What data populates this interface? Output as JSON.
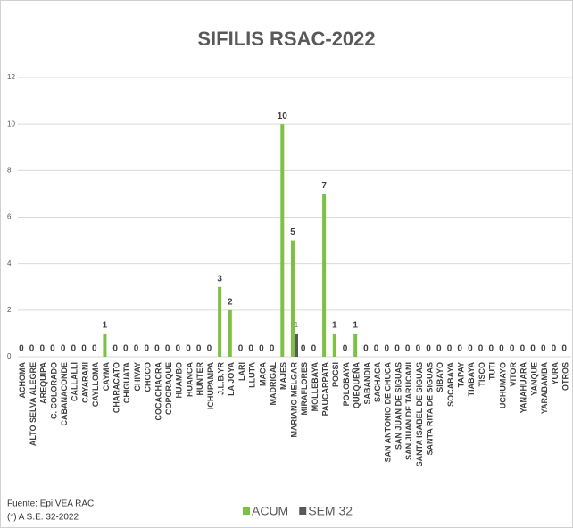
{
  "chart_data": {
    "type": "bar",
    "title": "SIFILIS RSAC-2022",
    "categories": [
      "ACHOMA",
      "ALTO SELVA ALEGRE",
      "AREQUIPA",
      "C. COLORADO",
      "CABANACONDE",
      "CALLALLI",
      "CAYARANI",
      "CAYLLOMA",
      "CAYMA",
      "CHARACATO",
      "CHIGUATA",
      "CHIVAY",
      "CHOCO",
      "COCACHACRA",
      "COPORAQUE",
      "HUAMBO",
      "HUANCA",
      "HUNTER",
      "ICHUPAMPA",
      "J.L.B.YR",
      "LA JOYA",
      "LARI",
      "LLUTA",
      "MACA",
      "MADRIGAL",
      "MAJES",
      "MARIANO MELGAR",
      "MIRAFLORES",
      "MOLLEBAYA",
      "PAUCARPATA",
      "POCSI",
      "POLOBAYA",
      "QUEQUEÑA",
      "SABANDIA",
      "SACHACA",
      "SAN ANTONIO DE CHUCA",
      "SAN JUAN DE SIGUAS",
      "SAN JUAN DE TARUCANI",
      "SANTA ISABEL DE SIGUAS",
      "SANTA RITA DE SIGUAS",
      "SIBAYO",
      "SOCABAYA",
      "TAPAY",
      "TIABAYA",
      "TISCO",
      "TUTI",
      "UCHUMAYO",
      "VITOR",
      "YANAHUARA",
      "YANQUE",
      "YARABAMBA",
      "YURA",
      "OTROS"
    ],
    "series": [
      {
        "name": "ACUM",
        "color": "#7dc142",
        "values": [
          0,
          0,
          0,
          0,
          0,
          0,
          0,
          0,
          1,
          0,
          0,
          0,
          0,
          0,
          0,
          0,
          0,
          0,
          0,
          3,
          2,
          0,
          0,
          0,
          0,
          10,
          5,
          0,
          0,
          7,
          1,
          0,
          1,
          0,
          0,
          0,
          0,
          0,
          0,
          0,
          0,
          0,
          0,
          0,
          0,
          0,
          0,
          0,
          0,
          0,
          0,
          0,
          0
        ]
      },
      {
        "name": "SEM 32",
        "color": "#595959",
        "values": [
          null,
          null,
          null,
          null,
          null,
          null,
          null,
          null,
          null,
          null,
          null,
          null,
          null,
          null,
          null,
          null,
          null,
          null,
          null,
          null,
          null,
          null,
          null,
          null,
          null,
          null,
          1,
          null,
          null,
          null,
          null,
          null,
          null,
          null,
          null,
          null,
          null,
          null,
          null,
          null,
          null,
          null,
          null,
          null,
          null,
          null,
          null,
          null,
          null,
          null,
          null,
          null,
          null
        ]
      }
    ],
    "ylim": [
      0,
      12
    ],
    "yticks": [
      0,
      2,
      4,
      6,
      8,
      10,
      12
    ],
    "grid": true,
    "footnotes": [
      "Fuente:  Epi VEA RAC",
      "(*) A S.E. 32-2022"
    ]
  }
}
